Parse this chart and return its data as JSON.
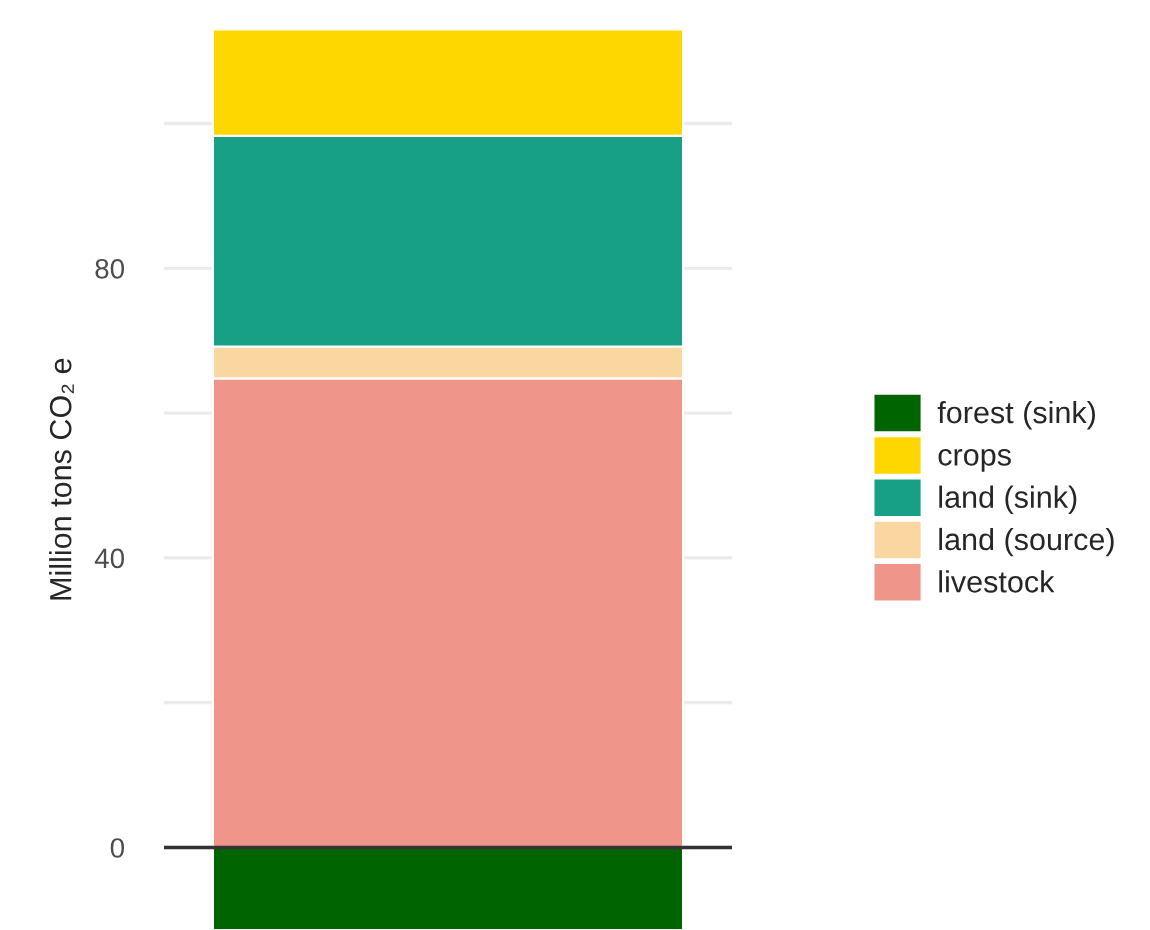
{
  "chart_data": {
    "type": "bar",
    "stacked": true,
    "ylabel": "Million tons CO₂ e",
    "categories": [
      null
    ],
    "series": [
      {
        "name": "livestock",
        "color": "#f0958a",
        "values": [
          64.8
        ]
      },
      {
        "name": "land (source)",
        "color": "#fad6a0",
        "values": [
          4.4
        ]
      },
      {
        "name": "land (sink)",
        "color": "#17a086",
        "values": [
          29.1
        ]
      },
      {
        "name": "crops",
        "color": "#ffd700",
        "values": [
          14.7
        ]
      },
      {
        "name": "forest (sink)",
        "color": "#006400",
        "values": [
          -11.4
        ]
      }
    ],
    "ylim": [
      -11.4,
      113
    ],
    "yticks": [
      0,
      {
        "value": 20,
        "label": null
      },
      40,
      {
        "value": 60,
        "label": null
      },
      80,
      {
        "value": 100,
        "label": null
      }
    ],
    "ref_lines": [
      {
        "axis": "y",
        "value": 0,
        "color": "#333333"
      }
    ],
    "grid": "y",
    "legend": "right"
  }
}
